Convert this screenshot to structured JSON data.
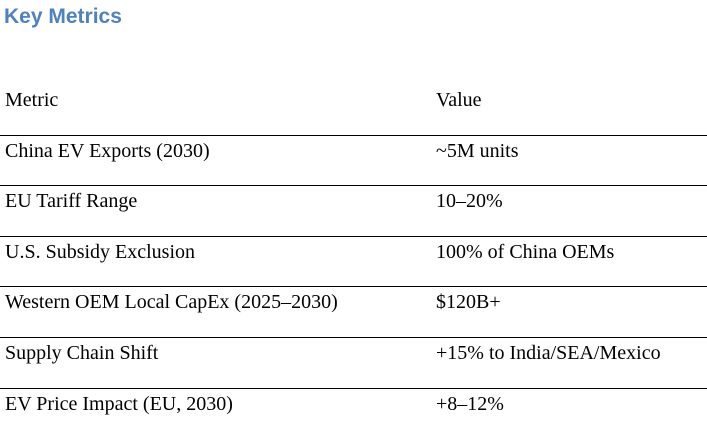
{
  "header": {
    "title": "Key Metrics"
  },
  "table": {
    "columns": [
      "Metric",
      "Value"
    ],
    "rows": [
      [
        "China EV Exports (2030)",
        "~5M units"
      ],
      [
        "EU Tariff Range",
        "10–20%"
      ],
      [
        "U.S. Subsidy Exclusion",
        "100% of China OEMs"
      ],
      [
        "Western OEM Local CapEx (2025–2030)",
        "$120B+"
      ],
      [
        "Supply Chain Shift",
        "+15% to India/SEA/Mexico"
      ],
      [
        "EV Price Impact (EU, 2030)",
        "+8–12%"
      ]
    ]
  }
}
